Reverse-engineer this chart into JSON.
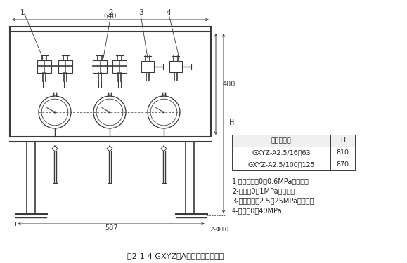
{
  "title": "图2-1-4 GXYZ型A系列稀油站仪表盘",
  "table_header": [
    "稀油站规格",
    "H"
  ],
  "table_rows": [
    [
      "GXYZ-A2.5/16～63",
      "810"
    ],
    [
      "GXYZ-A2.5/100～125",
      "870"
    ]
  ],
  "notes": [
    "1-压力控制器0～0.6MPa（二个）",
    "2-压力表0～1MPa（二个）",
    "3-压力控制器2.5～25MPa（二个）",
    "4-压力表0～40MPa"
  ],
  "dim_640": "640",
  "dim_400": "400",
  "dim_587": "587",
  "dim_H": "H",
  "dim_2phi10": "2-Φ10",
  "label1": "1",
  "label2": "2",
  "label3": "3",
  "label4": "4",
  "bg_color": "#ffffff",
  "line_color": "#3a3a3a",
  "gray_color": "#888888"
}
